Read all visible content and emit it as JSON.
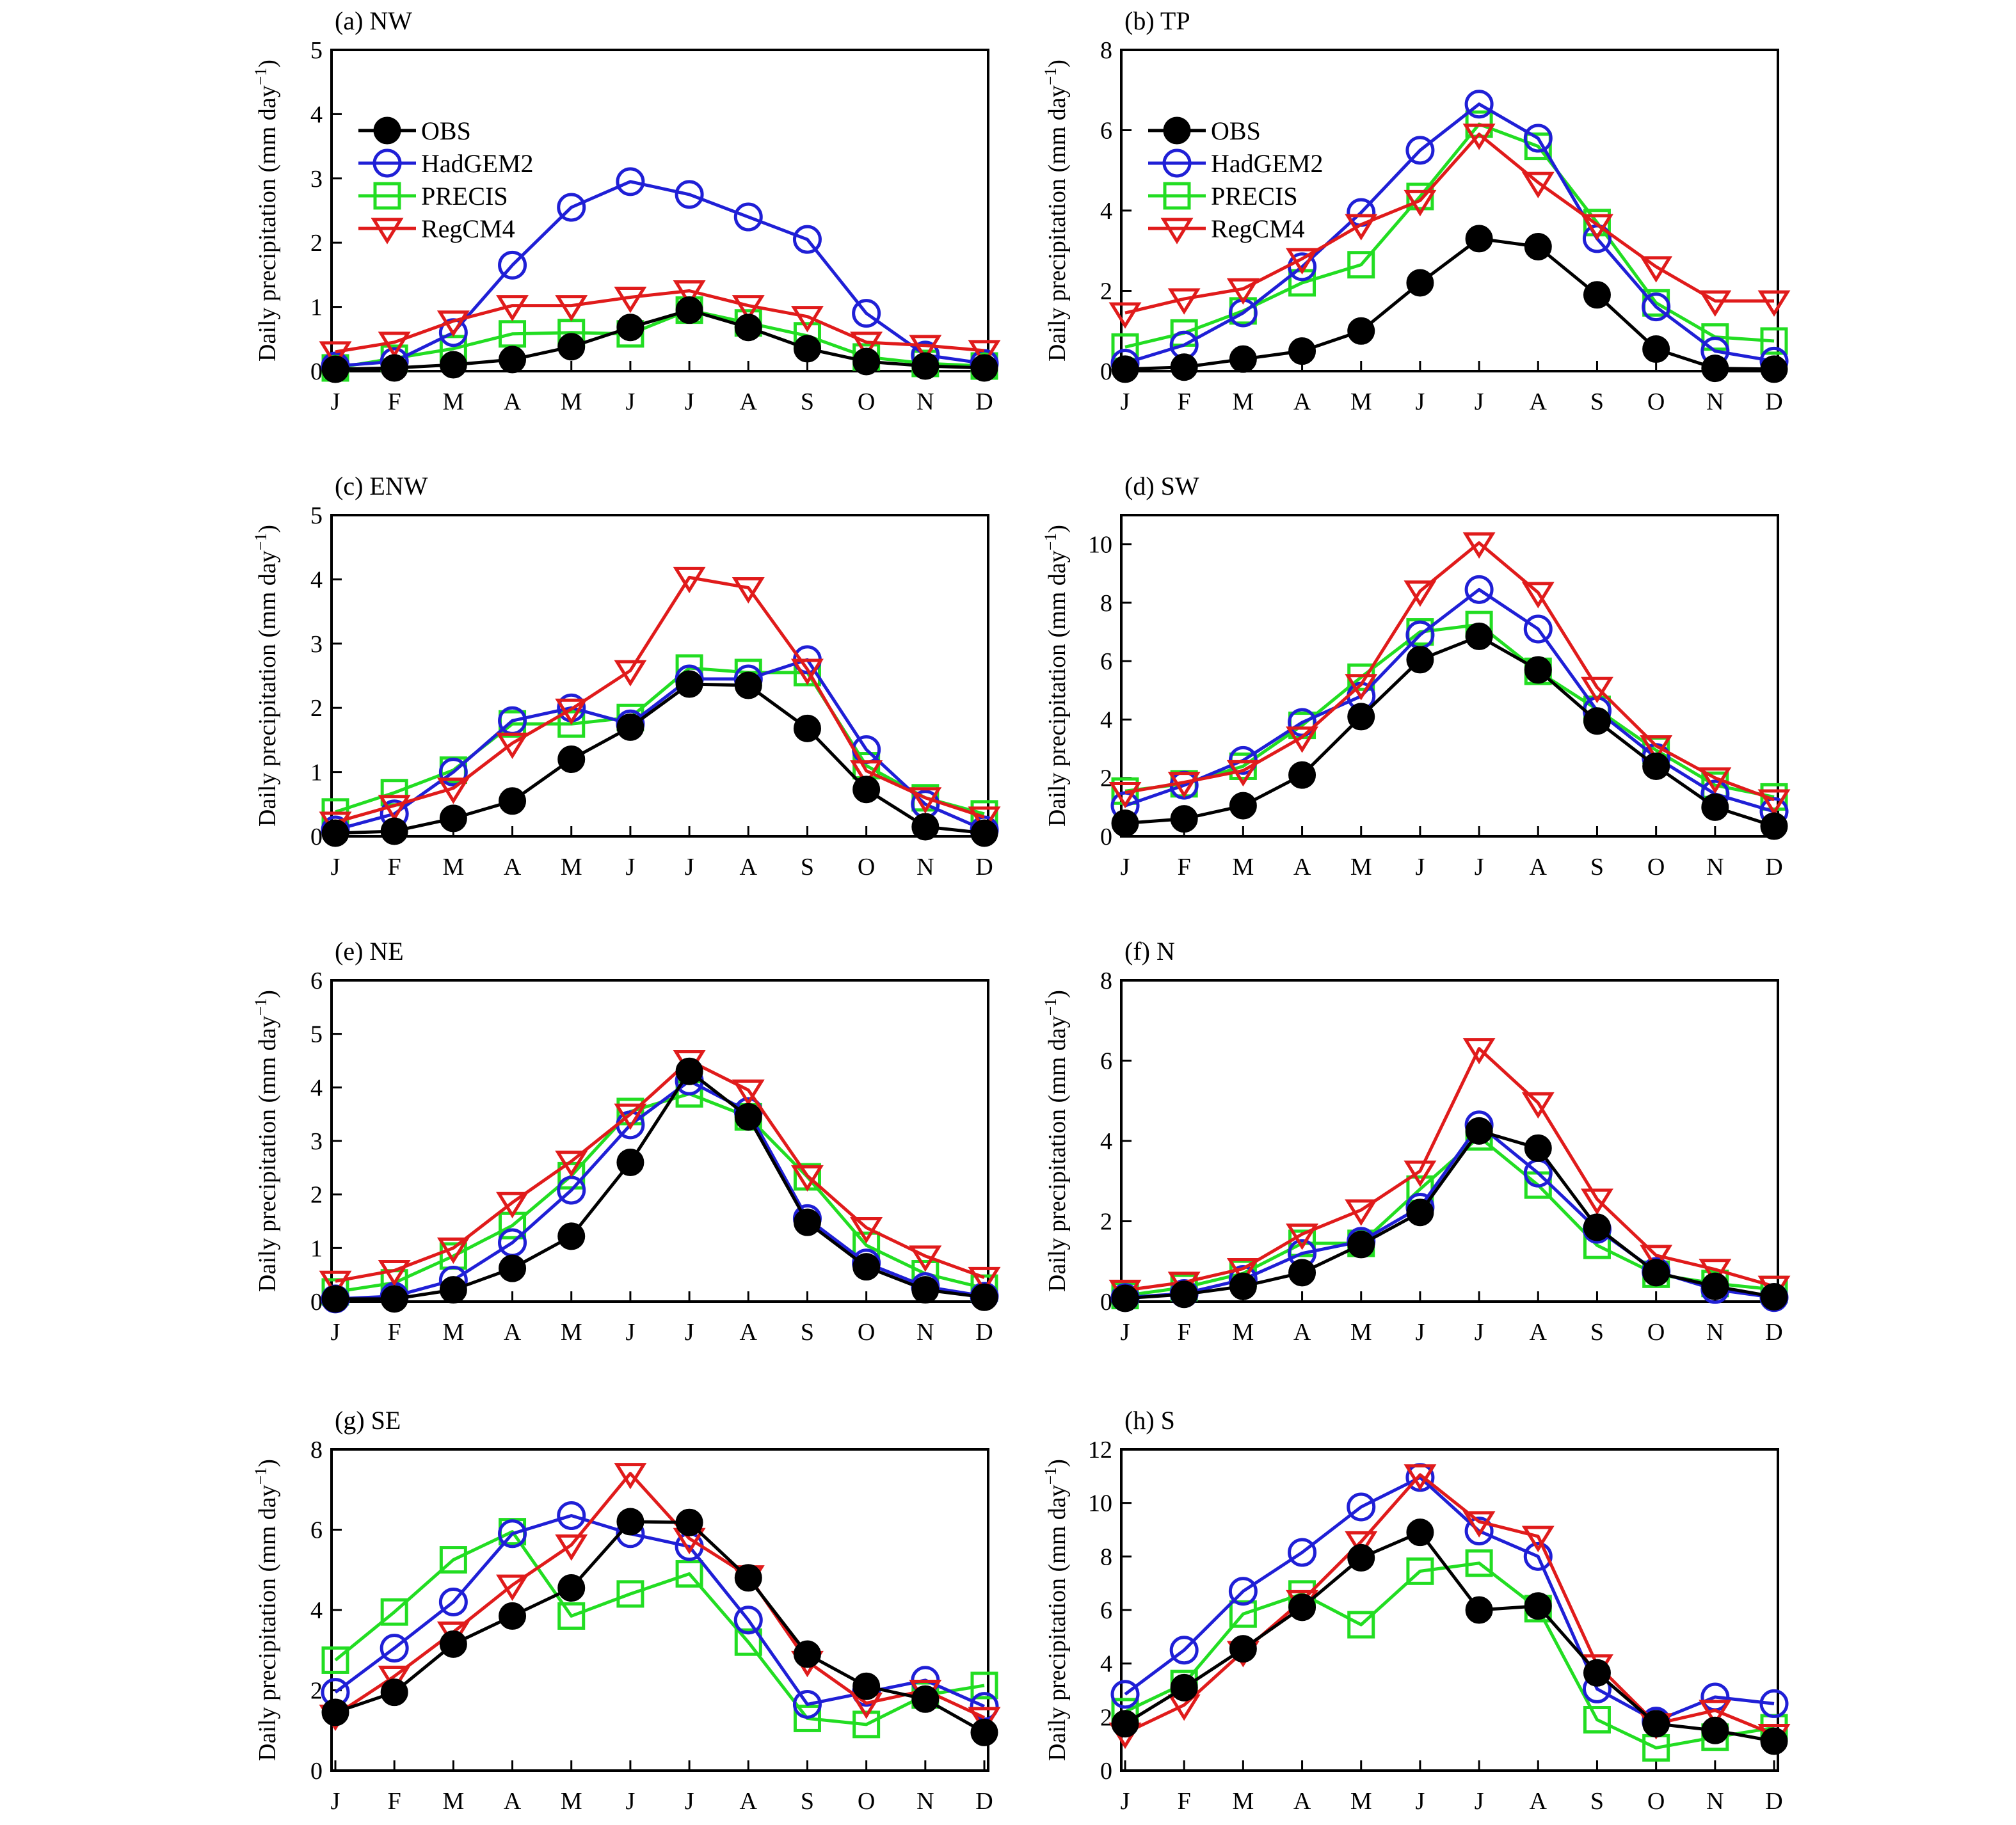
{
  "figure": {
    "ylabel_main": "Daily precipitation (mm day",
    "ylabel_sup": "−1",
    "ylabel_close": ")",
    "months": [
      "J",
      "F",
      "M",
      "A",
      "M",
      "J",
      "J",
      "A",
      "S",
      "O",
      "N",
      "D"
    ]
  },
  "colors": {
    "OBS": "#000000",
    "HadGEM2": "#1f1fd6",
    "PRECIS": "#22dd22",
    "RegCM4": "#e01b1b"
  },
  "legend": [
    "OBS",
    "HadGEM2",
    "PRECIS",
    "RegCM4"
  ],
  "chart_data": [
    {
      "type": "line",
      "title": "(a) NW",
      "ylabel": "Daily precipitation (mm day−1)",
      "categories": [
        "J",
        "F",
        "M",
        "A",
        "M",
        "J",
        "J",
        "A",
        "S",
        "O",
        "N",
        "D"
      ],
      "ylim": [
        0,
        5
      ],
      "yticks": [
        0,
        1,
        2,
        3,
        4,
        5
      ],
      "legend": "top-left",
      "series": [
        {
          "name": "OBS",
          "values": [
            0.03,
            0.05,
            0.1,
            0.18,
            0.38,
            0.68,
            0.95,
            0.68,
            0.35,
            0.15,
            0.08,
            0.05
          ]
        },
        {
          "name": "HadGEM2",
          "values": [
            0.08,
            0.15,
            0.6,
            1.65,
            2.55,
            2.95,
            2.75,
            2.4,
            2.05,
            0.9,
            0.25,
            0.12
          ]
        },
        {
          "name": "PRECIS",
          "values": [
            0.05,
            0.2,
            0.35,
            0.58,
            0.6,
            0.58,
            0.95,
            0.75,
            0.55,
            0.22,
            0.12,
            0.08
          ]
        },
        {
          "name": "RegCM4",
          "values": [
            0.3,
            0.45,
            0.78,
            1.02,
            1.02,
            1.15,
            1.25,
            1.02,
            0.85,
            0.45,
            0.4,
            0.32
          ]
        }
      ]
    },
    {
      "type": "line",
      "title": "(b) TP",
      "ylabel": "Daily precipitation (mm day−1)",
      "categories": [
        "J",
        "F",
        "M",
        "A",
        "M",
        "J",
        "J",
        "A",
        "S",
        "O",
        "N",
        "D"
      ],
      "ylim": [
        0,
        8
      ],
      "yticks": [
        0,
        2,
        4,
        6,
        8
      ],
      "legend": "top-left",
      "series": [
        {
          "name": "OBS",
          "values": [
            0.05,
            0.1,
            0.3,
            0.5,
            1.0,
            2.2,
            3.3,
            3.1,
            1.9,
            0.55,
            0.07,
            0.05
          ]
        },
        {
          "name": "HadGEM2",
          "values": [
            0.2,
            0.65,
            1.45,
            2.6,
            3.95,
            5.5,
            6.65,
            5.8,
            3.3,
            1.6,
            0.5,
            0.25
          ]
        },
        {
          "name": "PRECIS",
          "values": [
            0.6,
            0.95,
            1.5,
            2.2,
            2.65,
            4.35,
            6.15,
            5.6,
            3.7,
            1.7,
            0.85,
            0.75
          ]
        },
        {
          "name": "RegCM4",
          "values": [
            1.45,
            1.8,
            2.05,
            2.8,
            3.65,
            4.25,
            5.9,
            4.7,
            3.65,
            2.6,
            1.75,
            1.75
          ]
        }
      ]
    },
    {
      "type": "line",
      "title": "(c) ENW",
      "ylabel": "Daily precipitation (mm day−1)",
      "categories": [
        "J",
        "F",
        "M",
        "A",
        "M",
        "J",
        "J",
        "A",
        "S",
        "O",
        "N",
        "D"
      ],
      "ylim": [
        0,
        5
      ],
      "yticks": [
        0,
        1,
        2,
        3,
        4,
        5
      ],
      "legend": "none",
      "series": [
        {
          "name": "OBS",
          "values": [
            0.05,
            0.08,
            0.28,
            0.55,
            1.2,
            1.7,
            2.37,
            2.35,
            1.68,
            0.73,
            0.15,
            0.05
          ]
        },
        {
          "name": "HadGEM2",
          "values": [
            0.1,
            0.35,
            1.0,
            1.8,
            2.0,
            1.75,
            2.45,
            2.45,
            2.75,
            1.35,
            0.5,
            0.1
          ]
        },
        {
          "name": "PRECIS",
          "values": [
            0.38,
            0.68,
            1.03,
            1.75,
            1.75,
            1.85,
            2.62,
            2.55,
            2.55,
            1.1,
            0.6,
            0.35
          ]
        },
        {
          "name": "RegCM4",
          "values": [
            0.22,
            0.48,
            0.75,
            1.45,
            1.98,
            2.58,
            4.03,
            3.87,
            2.6,
            1.02,
            0.6,
            0.3
          ]
        }
      ]
    },
    {
      "type": "line",
      "title": "(d) SW",
      "ylabel": "Daily precipitation (mm day−1)",
      "categories": [
        "J",
        "F",
        "M",
        "A",
        "M",
        "J",
        "J",
        "A",
        "S",
        "O",
        "N",
        "D"
      ],
      "ylim": [
        0,
        11
      ],
      "yticks": [
        0,
        2,
        4,
        6,
        8,
        10
      ],
      "legend": "none",
      "series": [
        {
          "name": "OBS",
          "values": [
            0.45,
            0.6,
            1.05,
            2.1,
            4.1,
            6.05,
            6.85,
            5.7,
            3.95,
            2.4,
            1.0,
            0.35
          ]
        },
        {
          "name": "HadGEM2",
          "values": [
            1.05,
            1.75,
            2.6,
            3.9,
            4.8,
            6.9,
            8.45,
            7.1,
            4.3,
            2.7,
            1.45,
            0.85
          ]
        },
        {
          "name": "PRECIS",
          "values": [
            1.55,
            1.8,
            2.4,
            3.8,
            5.45,
            7.0,
            7.25,
            5.65,
            4.35,
            2.95,
            1.75,
            1.35
          ]
        },
        {
          "name": "RegCM4",
          "values": [
            1.5,
            1.85,
            2.25,
            3.4,
            5.2,
            8.4,
            10.05,
            8.35,
            5.1,
            3.1,
            2.0,
            1.25
          ]
        }
      ]
    },
    {
      "type": "line",
      "title": "(e) NE",
      "ylabel": "Daily precipitation (mm day−1)",
      "categories": [
        "J",
        "F",
        "M",
        "A",
        "M",
        "J",
        "J",
        "A",
        "S",
        "O",
        "N",
        "D"
      ],
      "ylim": [
        0,
        6
      ],
      "yticks": [
        0,
        1,
        2,
        3,
        4,
        5,
        6
      ],
      "legend": "none",
      "series": [
        {
          "name": "OBS",
          "values": [
            0.05,
            0.05,
            0.22,
            0.62,
            1.22,
            2.6,
            4.3,
            3.45,
            1.48,
            0.65,
            0.22,
            0.08
          ]
        },
        {
          "name": "HadGEM2",
          "values": [
            0.05,
            0.1,
            0.4,
            1.1,
            2.08,
            3.3,
            4.12,
            3.55,
            1.55,
            0.72,
            0.28,
            0.1
          ]
        },
        {
          "name": "PRECIS",
          "values": [
            0.18,
            0.35,
            0.85,
            1.42,
            2.35,
            3.55,
            3.88,
            3.45,
            2.33,
            1.05,
            0.52,
            0.25
          ]
        },
        {
          "name": "RegCM4",
          "values": [
            0.38,
            0.58,
            1.0,
            1.85,
            2.62,
            3.5,
            4.5,
            3.95,
            2.35,
            1.38,
            0.85,
            0.45
          ]
        }
      ]
    },
    {
      "type": "line",
      "title": "(f) N",
      "ylabel": "Daily precipitation (mm day−1)",
      "categories": [
        "J",
        "F",
        "M",
        "A",
        "M",
        "J",
        "J",
        "A",
        "S",
        "O",
        "N",
        "D"
      ],
      "ylim": [
        0,
        8
      ],
      "yticks": [
        0,
        2,
        4,
        6,
        8
      ],
      "legend": "none",
      "series": [
        {
          "name": "OBS",
          "values": [
            0.08,
            0.18,
            0.38,
            0.72,
            1.42,
            2.22,
            4.25,
            3.82,
            1.85,
            0.72,
            0.38,
            0.12
          ]
        },
        {
          "name": "HadGEM2",
          "values": [
            0.1,
            0.2,
            0.55,
            1.2,
            1.5,
            2.35,
            4.4,
            3.2,
            1.8,
            0.75,
            0.3,
            0.1
          ]
        },
        {
          "name": "PRECIS",
          "values": [
            0.15,
            0.35,
            0.7,
            1.45,
            1.45,
            2.8,
            4.1,
            2.9,
            1.4,
            0.68,
            0.45,
            0.3
          ]
        },
        {
          "name": "RegCM4",
          "values": [
            0.28,
            0.48,
            0.82,
            1.68,
            2.28,
            3.25,
            6.3,
            4.95,
            2.55,
            1.15,
            0.8,
            0.38
          ]
        }
      ]
    },
    {
      "type": "line",
      "title": "(g) SE",
      "ylabel": "Daily precipitation (mm day−1)",
      "categories": [
        "J",
        "F",
        "M",
        "A",
        "M",
        "J",
        "J",
        "A",
        "S",
        "O",
        "N",
        "D"
      ],
      "ylim": [
        0,
        8
      ],
      "yticks": [
        0,
        2,
        4,
        6,
        8
      ],
      "legend": "none",
      "series": [
        {
          "name": "OBS",
          "values": [
            1.45,
            1.95,
            3.15,
            3.85,
            4.55,
            6.2,
            6.18,
            4.8,
            2.9,
            2.1,
            1.78,
            0.95
          ]
        },
        {
          "name": "HadGEM2",
          "values": [
            1.95,
            3.05,
            4.2,
            5.9,
            6.35,
            5.9,
            5.58,
            3.75,
            1.65,
            1.95,
            2.25,
            1.6
          ]
        },
        {
          "name": "PRECIS",
          "values": [
            2.75,
            3.95,
            5.25,
            5.95,
            3.85,
            4.4,
            4.9,
            3.2,
            1.3,
            1.15,
            1.88,
            2.12
          ]
        },
        {
          "name": "RegCM4",
          "values": [
            1.38,
            2.35,
            3.45,
            4.62,
            5.62,
            7.4,
            5.78,
            4.85,
            2.72,
            1.68,
            2.0,
            1.32
          ]
        }
      ]
    },
    {
      "type": "line",
      "title": "(h) S",
      "ylabel": "Daily precipitation (mm day−1)",
      "categories": [
        "J",
        "F",
        "M",
        "A",
        "M",
        "J",
        "J",
        "A",
        "S",
        "O",
        "N",
        "D"
      ],
      "ylim": [
        0,
        12
      ],
      "yticks": [
        0,
        2,
        4,
        6,
        8,
        10,
        12
      ],
      "legend": "none",
      "series": [
        {
          "name": "OBS",
          "values": [
            1.75,
            3.1,
            4.55,
            6.1,
            7.95,
            8.9,
            6.0,
            6.15,
            3.65,
            1.75,
            1.5,
            1.1
          ]
        },
        {
          "name": "HadGEM2",
          "values": [
            2.85,
            4.5,
            6.7,
            8.15,
            9.85,
            10.95,
            8.95,
            8.0,
            3.05,
            1.85,
            2.75,
            2.5
          ]
        },
        {
          "name": "PRECIS",
          "values": [
            2.2,
            3.25,
            5.85,
            6.6,
            5.45,
            7.45,
            7.75,
            6.05,
            1.9,
            0.85,
            1.25,
            1.6
          ]
        },
        {
          "name": "RegCM4",
          "values": [
            1.4,
            2.45,
            4.45,
            6.35,
            8.55,
            11.05,
            9.3,
            8.75,
            3.95,
            1.75,
            2.25,
            1.35
          ]
        }
      ]
    }
  ]
}
